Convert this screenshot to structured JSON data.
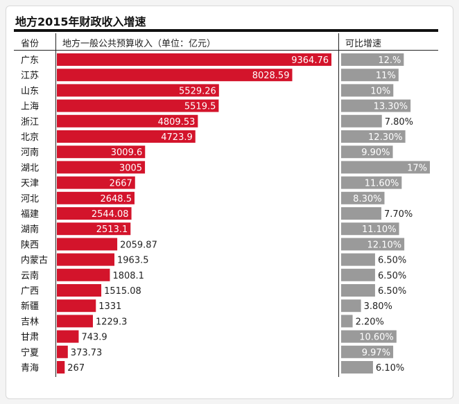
{
  "chart_data": {
    "type": "bar",
    "title": "地方2015年财政收入增速",
    "headers": {
      "province": "省份",
      "revenue": "地方一般公共预算收入（单位：亿元",
      "growth": "可比增速"
    },
    "rows": [
      {
        "province": "广东",
        "revenue": 9364.76,
        "revenue_label": "9364.76",
        "growth": 12.0,
        "growth_label": "12.%"
      },
      {
        "province": "江苏",
        "revenue": 8028.59,
        "revenue_label": "8028.59",
        "growth": 11.0,
        "growth_label": "11%"
      },
      {
        "province": "山东",
        "revenue": 5529.26,
        "revenue_label": "5529.26",
        "growth": 10.0,
        "growth_label": "10%"
      },
      {
        "province": "上海",
        "revenue": 5519.5,
        "revenue_label": "5519.5",
        "growth": 13.3,
        "growth_label": "13.30%"
      },
      {
        "province": "浙江",
        "revenue": 4809.53,
        "revenue_label": "4809.53",
        "growth": 7.8,
        "growth_label": "7.80%"
      },
      {
        "province": "北京",
        "revenue": 4723.9,
        "revenue_label": "4723.9",
        "growth": 12.3,
        "growth_label": "12.30%"
      },
      {
        "province": "河南",
        "revenue": 3009.6,
        "revenue_label": "3009.6",
        "growth": 9.9,
        "growth_label": "9.90%"
      },
      {
        "province": "湖北",
        "revenue": 3005,
        "revenue_label": "3005",
        "growth": 17.0,
        "growth_label": "17%"
      },
      {
        "province": "天津",
        "revenue": 2667,
        "revenue_label": "2667",
        "growth": 11.6,
        "growth_label": "11.60%"
      },
      {
        "province": "河北",
        "revenue": 2648.5,
        "revenue_label": "2648.5",
        "growth": 8.3,
        "growth_label": "8.30%"
      },
      {
        "province": "福建",
        "revenue": 2544.08,
        "revenue_label": "2544.08",
        "growth": 7.7,
        "growth_label": "7.70%"
      },
      {
        "province": "湖南",
        "revenue": 2513.1,
        "revenue_label": "2513.1",
        "growth": 11.1,
        "growth_label": "11.10%"
      },
      {
        "province": "陕西",
        "revenue": 2059.87,
        "revenue_label": "2059.87",
        "growth": 12.1,
        "growth_label": "12.10%"
      },
      {
        "province": "内蒙古",
        "revenue": 1963.5,
        "revenue_label": "1963.5",
        "growth": 6.5,
        "growth_label": "6.50%"
      },
      {
        "province": "云南",
        "revenue": 1808.1,
        "revenue_label": "1808.1",
        "growth": 6.5,
        "growth_label": "6.50%"
      },
      {
        "province": "广西",
        "revenue": 1515.08,
        "revenue_label": "1515.08",
        "growth": 6.5,
        "growth_label": "6.50%"
      },
      {
        "province": "新疆",
        "revenue": 1331,
        "revenue_label": "1331",
        "growth": 3.8,
        "growth_label": "3.80%"
      },
      {
        "province": "吉林",
        "revenue": 1229.3,
        "revenue_label": "1229.3",
        "growth": 2.2,
        "growth_label": "2.20%"
      },
      {
        "province": "甘肃",
        "revenue": 743.9,
        "revenue_label": "743.9",
        "growth": 10.6,
        "growth_label": "10.60%"
      },
      {
        "province": "宁夏",
        "revenue": 373.73,
        "revenue_label": "373.73",
        "growth": 9.97,
        "growth_label": "9.97%"
      },
      {
        "province": "青海",
        "revenue": 267,
        "revenue_label": "267",
        "growth": 6.1,
        "growth_label": "6.10%"
      }
    ],
    "colors": {
      "revenue_bar": "#d3142b",
      "growth_bar": "#9a9a9a"
    }
  }
}
